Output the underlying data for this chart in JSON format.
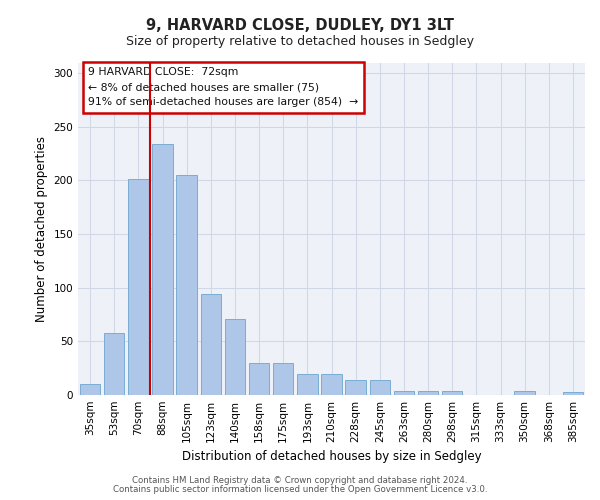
{
  "title1": "9, HARVARD CLOSE, DUDLEY, DY1 3LT",
  "title2": "Size of property relative to detached houses in Sedgley",
  "xlabel": "Distribution of detached houses by size in Sedgley",
  "ylabel": "Number of detached properties",
  "categories": [
    "35sqm",
    "53sqm",
    "70sqm",
    "88sqm",
    "105sqm",
    "123sqm",
    "140sqm",
    "158sqm",
    "175sqm",
    "193sqm",
    "210sqm",
    "228sqm",
    "245sqm",
    "263sqm",
    "280sqm",
    "298sqm",
    "315sqm",
    "333sqm",
    "350sqm",
    "368sqm",
    "385sqm"
  ],
  "values": [
    10,
    58,
    201,
    234,
    205,
    94,
    71,
    30,
    30,
    20,
    20,
    14,
    14,
    4,
    4,
    4,
    0,
    0,
    4,
    0,
    3
  ],
  "bar_color": "#aec6e8",
  "bar_edge_color": "#7aadd4",
  "grid_color": "#d0d8e8",
  "background_color": "#eef2f8",
  "annotation_box_color": "#cc0000",
  "red_line_x": 2.5,
  "ylim": [
    0,
    310
  ],
  "yticks": [
    0,
    50,
    100,
    150,
    200,
    250,
    300
  ],
  "footer_line1": "Contains HM Land Registry data © Crown copyright and database right 2024.",
  "footer_line2": "Contains public sector information licensed under the Open Government Licence v3.0."
}
